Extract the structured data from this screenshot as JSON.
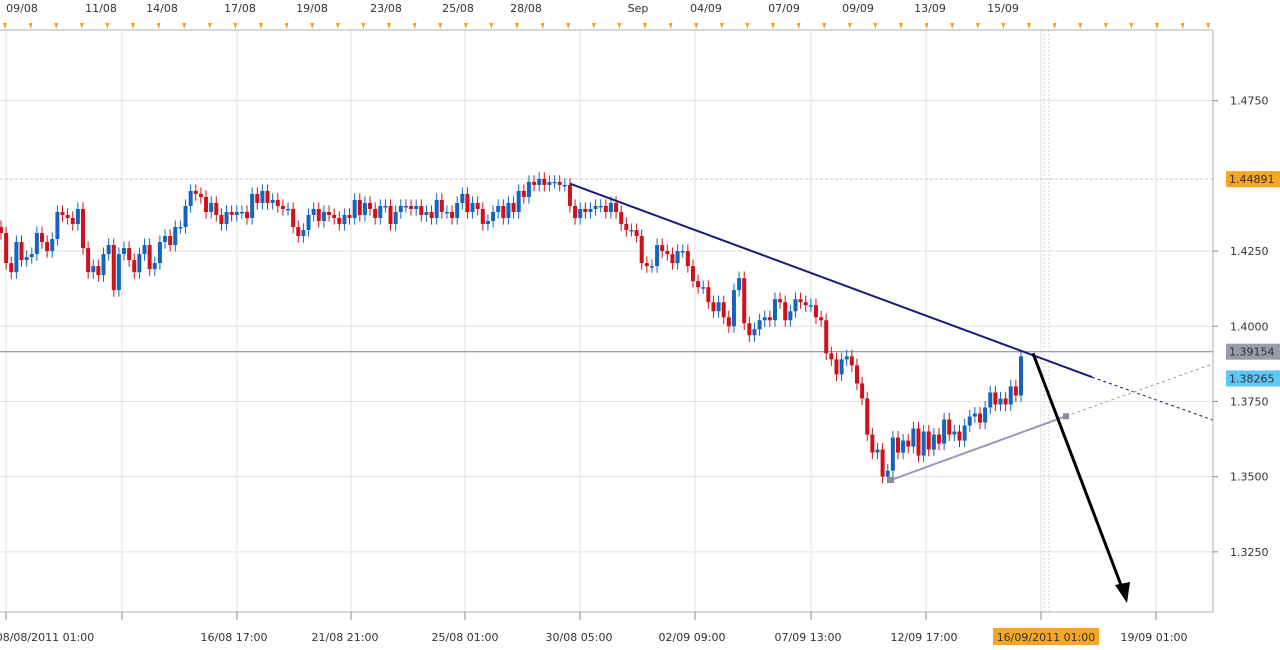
{
  "chart_data": {
    "type": "candlestick",
    "instrument_note": "",
    "top_date_labels": [
      "09/08",
      "11/08",
      "14/08",
      "17/08",
      "19/08",
      "23/08",
      "25/08",
      "28/08",
      "Sep",
      "04/09",
      "07/09",
      "09/09",
      "13/09",
      "15/09"
    ],
    "bottom_time_labels": [
      "08/08/2011 01:00",
      "16/08 17:00",
      "21/08 21:00",
      "25/08 01:00",
      "30/08 05:00",
      "02/09 09:00",
      "07/09 13:00",
      "12/09 17:00",
      "16/09/2011 01:00",
      "19/09 01:00"
    ],
    "highlighted_time_label": "16/09/2011 01:00",
    "y_tick_labels": [
      "1.4750",
      "1.4250",
      "1.4000",
      "1.3750",
      "1.3500",
      "1.3250"
    ],
    "ylim": [
      1.305,
      1.4985
    ],
    "price_markers": [
      {
        "label": "1.44891",
        "value": 1.44891,
        "color": "#f5a623"
      },
      {
        "label": "1.39154",
        "value": 1.39154,
        "color": "#9a9aad"
      },
      {
        "label": "1.38265",
        "value": 1.38265,
        "color": "#5bc8f5"
      }
    ],
    "horizontal_lines": [
      {
        "value": 1.44891,
        "style": "dotted",
        "color": "#c9c9c9"
      },
      {
        "value": 1.39154,
        "style": "solid",
        "color": "#7a7a9a"
      }
    ],
    "candles_close": [
      1.431,
      1.421,
      1.418,
      1.428,
      1.422,
      1.423,
      1.424,
      1.431,
      1.428,
      1.425,
      1.429,
      1.438,
      1.437,
      1.436,
      1.434,
      1.439,
      1.426,
      1.418,
      1.42,
      1.417,
      1.424,
      1.427,
      1.412,
      1.424,
      1.426,
      1.422,
      1.418,
      1.424,
      1.427,
      1.419,
      1.421,
      1.428,
      1.43,
      1.427,
      1.433,
      1.433,
      1.44,
      1.445,
      1.444,
      1.443,
      1.438,
      1.441,
      1.437,
      1.434,
      1.438,
      1.437,
      1.438,
      1.438,
      1.436,
      1.444,
      1.441,
      1.445,
      1.441,
      1.442,
      1.44,
      1.439,
      1.439,
      1.433,
      1.43,
      1.432,
      1.437,
      1.439,
      1.435,
      1.438,
      1.437,
      1.436,
      1.434,
      1.437,
      1.436,
      1.442,
      1.437,
      1.441,
      1.439,
      1.436,
      1.44,
      1.44,
      1.434,
      1.438,
      1.44,
      1.44,
      1.439,
      1.44,
      1.437,
      1.438,
      1.436,
      1.442,
      1.438,
      1.438,
      1.436,
      1.441,
      1.444,
      1.438,
      1.441,
      1.439,
      1.434,
      1.435,
      1.438,
      1.44,
      1.436,
      1.441,
      1.438,
      1.445,
      1.443,
      1.448,
      1.447,
      1.449,
      1.447,
      1.448,
      1.448,
      1.447,
      1.447,
      1.44,
      1.436,
      1.439,
      1.438,
      1.439,
      1.44,
      1.44,
      1.438,
      1.441,
      1.438,
      1.434,
      1.432,
      1.432,
      1.43,
      1.421,
      1.42,
      1.42,
      1.427,
      1.425,
      1.424,
      1.421,
      1.425,
      1.425,
      1.42,
      1.415,
      1.413,
      1.413,
      1.408,
      1.405,
      1.408,
      1.403,
      1.4,
      1.412,
      1.416,
      1.401,
      1.397,
      1.399,
      1.402,
      1.403,
      1.402,
      1.409,
      1.408,
      1.402,
      1.405,
      1.409,
      1.408,
      1.407,
      1.407,
      1.403,
      1.402,
      1.391,
      1.389,
      1.384,
      1.389,
      1.39,
      1.387,
      1.381,
      1.376,
      1.364,
      1.358,
      1.359,
      1.35,
      1.352,
      1.363,
      1.358,
      1.362,
      1.36,
      1.366,
      1.357,
      1.365,
      1.359,
      1.364,
      1.361,
      1.369,
      1.364,
      1.365,
      1.362,
      1.367,
      1.37,
      1.371,
      1.368,
      1.373,
      1.378,
      1.374,
      1.376,
      1.374,
      1.38,
      1.377,
      1.39
    ],
    "trendlines": [
      {
        "name": "",
        "color": "#1a1a7a",
        "from": {
          "bar": "30/08",
          "value": 1.4474
        },
        "to": {
          "bar": "16/09",
          "value": 1.3872
        },
        "extension": "dotted"
      },
      {
        "name": "",
        "color": "#9a9ab8",
        "from": {
          "bar": "12/09",
          "value": 1.3489
        },
        "to": {
          "bar": "16/09",
          "value": 1.37
        },
        "extension": "dotted"
      }
    ],
    "arrow": {
      "from": {
        "value": 1.391
      },
      "to": {
        "value": 1.308
      },
      "color": "#000000"
    },
    "grid": true,
    "up_color": "#1565c0",
    "down_color": "#d0101a"
  }
}
